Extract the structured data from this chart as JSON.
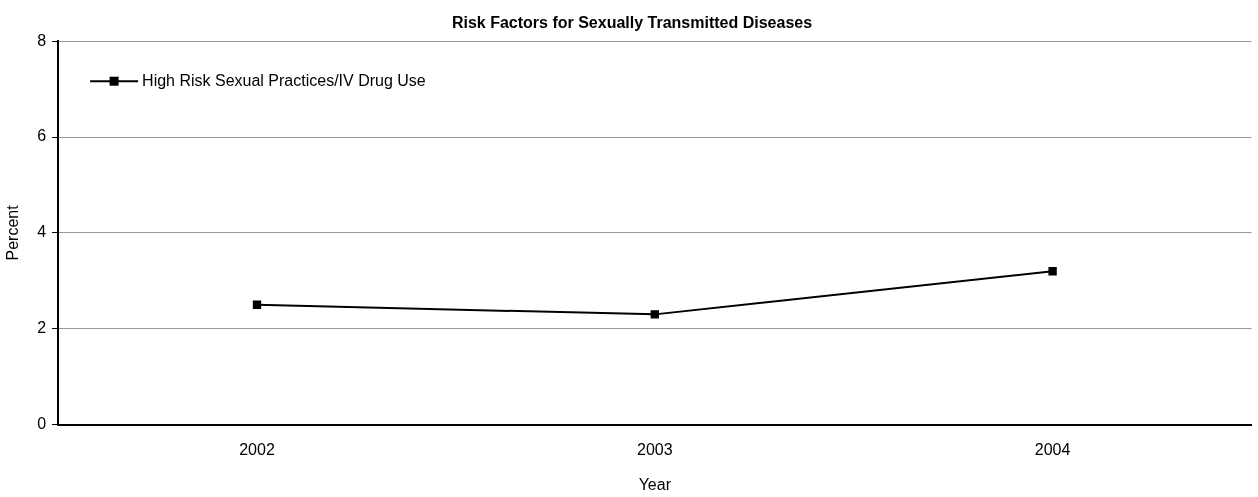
{
  "chart_data": {
    "type": "line",
    "title": "Risk Factors for Sexually Transmitted Diseases",
    "xlabel": "Year",
    "ylabel": "Percent",
    "categories": [
      "2002",
      "2003",
      "2004"
    ],
    "series": [
      {
        "name": "High Risk Sexual Practices/IV Drug Use",
        "color": "#000000",
        "values": [
          2.5,
          2.3,
          3.2
        ]
      }
    ],
    "ylim": [
      0,
      8
    ],
    "yticks": [
      0,
      2,
      4,
      6,
      8
    ],
    "grid": "y",
    "legend": "top left",
    "marker": "square",
    "line_style": "solid"
  }
}
